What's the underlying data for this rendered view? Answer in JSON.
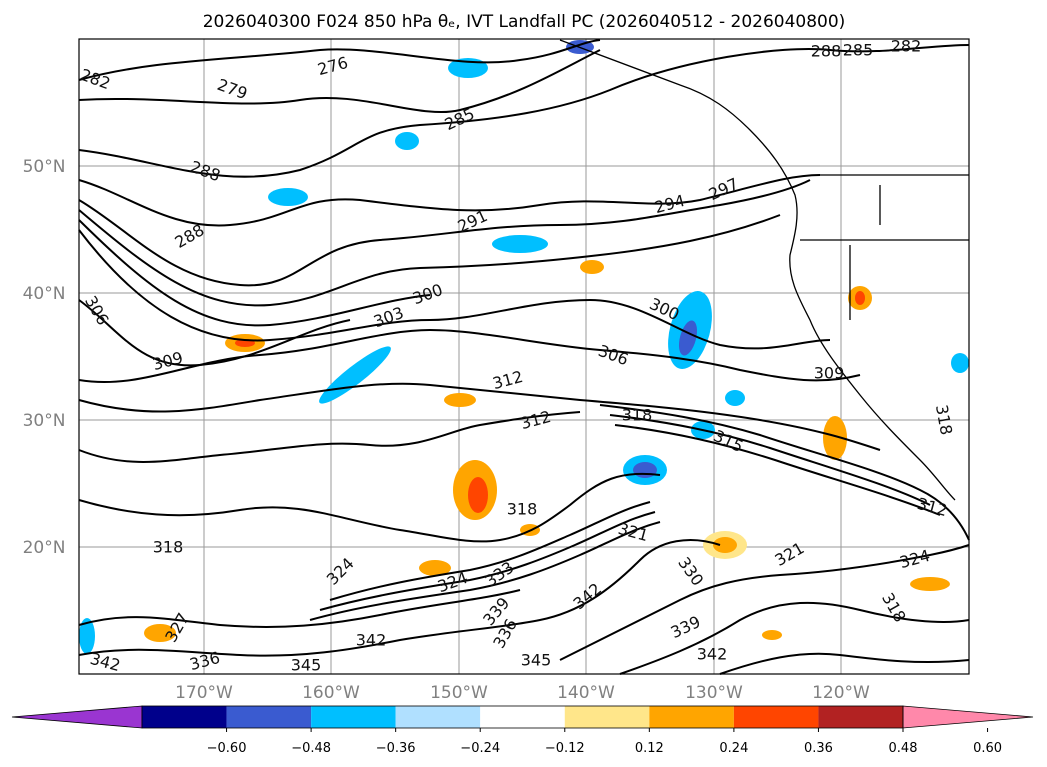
{
  "title_text": "2026040300 F024 850 hPa θₑ, IVT Landfall PC (2026040512 - 2026040800)",
  "lat_labels": [
    "50°N",
    "40°N",
    "30°N",
    "20°N"
  ],
  "lon_labels": [
    "170°W",
    "160°W",
    "150°W",
    "140°W",
    "130°W",
    "120°W"
  ],
  "contour_labels": [
    "282",
    "276",
    "279",
    "285",
    "288",
    "288",
    "285",
    "282",
    "288",
    "291",
    "294",
    "297",
    "300",
    "306",
    "303",
    "309",
    "300",
    "306",
    "312",
    "312",
    "318",
    "315",
    "309",
    "318",
    "318",
    "312",
    "318",
    "324",
    "321",
    "324",
    "333",
    "342",
    "330",
    "321",
    "324",
    "318",
    "327",
    "339",
    "336",
    "342",
    "339",
    "342",
    "345",
    "345",
    "342",
    "336"
  ],
  "colorbar": {
    "ticks": [
      "−0.60",
      "−0.48",
      "−0.36",
      "−0.24",
      "−0.12",
      "0.12",
      "0.24",
      "0.36",
      "0.48",
      "0.60"
    ],
    "colors": [
      "#9a35d1",
      "#00008b",
      "#3a5bd0",
      "#00bfff",
      "#b0e0ff",
      "#ffffff",
      "#ffe68a",
      "#ffa500",
      "#ff4500",
      "#b22222",
      "#ff88aa"
    ]
  }
}
